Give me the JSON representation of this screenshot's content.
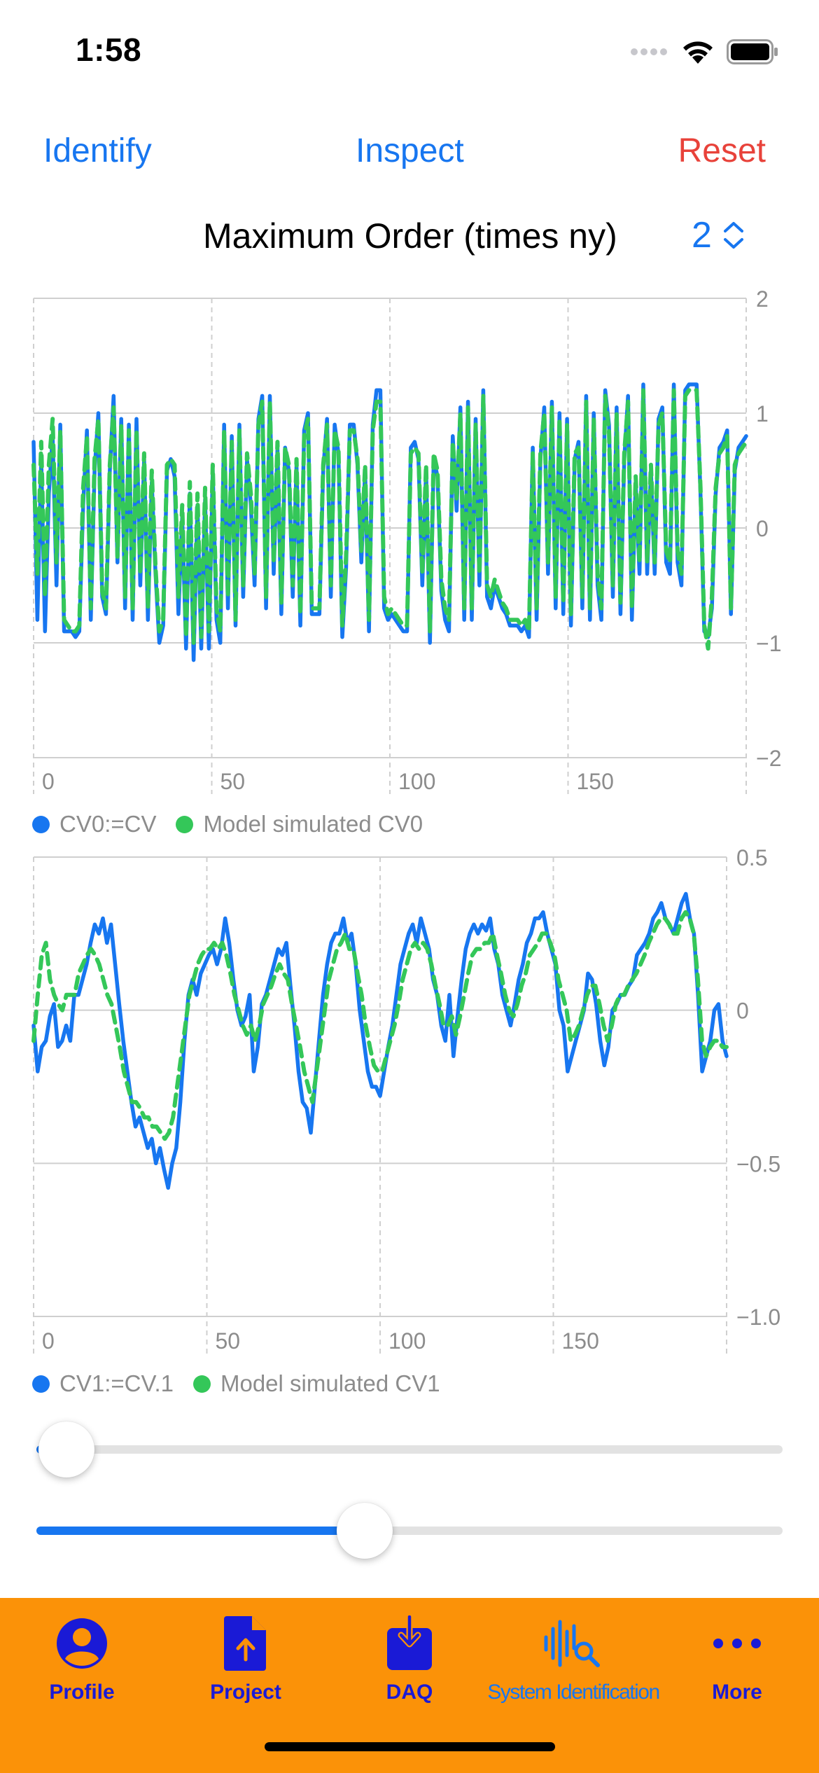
{
  "status_bar": {
    "time": "1:58"
  },
  "toolbar": {
    "identify_label": "Identify",
    "inspect_label": "Inspect",
    "reset_label": "Reset"
  },
  "order": {
    "label": "Maximum Order (times ny)",
    "value": "2"
  },
  "colors": {
    "accent": "#1776f0",
    "measured": "#1776f0",
    "model": "#34c759",
    "reset": "#e8423a",
    "tabbar": "#fb9208",
    "tab_label": "#1a1ad6"
  },
  "chart_data": [
    {
      "type": "line",
      "title": "",
      "xlabel": "",
      "ylabel": "",
      "xlim": [
        0,
        200
      ],
      "ylim": [
        -2,
        2
      ],
      "x_ticks": [
        0,
        50,
        100,
        150
      ],
      "x_tick_labels": [
        "0",
        "50",
        "100",
        "150"
      ],
      "y_ticks": [
        2,
        1,
        0,
        -1,
        -2
      ],
      "y_tick_labels": [
        "2",
        "1",
        "0",
        "−1",
        "−2"
      ],
      "grid": true,
      "legend": "bottom-left",
      "series": [
        {
          "name": "CV0:=CV",
          "color": "#1776f0",
          "style": "solid",
          "values": [
            0.75,
            -0.8,
            0.6,
            -0.9,
            0.3,
            0.8,
            -0.5,
            0.9,
            -0.9,
            -0.9,
            -0.9,
            -0.95,
            -0.9,
            0.2,
            0.85,
            -0.8,
            0.5,
            1.0,
            -0.6,
            -0.75,
            0.5,
            1.15,
            -0.3,
            0.95,
            -0.7,
            0.9,
            -0.8,
            0.95,
            -0.5,
            0.6,
            -0.8,
            0.4,
            -0.4,
            -1.0,
            -0.85,
            0.5,
            0.6,
            0.45,
            -0.75,
            0.1,
            -1.05,
            0.3,
            -1.15,
            0.2,
            -1.05,
            0.25,
            -1.05,
            0.5,
            -0.8,
            -1.0,
            0.9,
            -0.7,
            0.8,
            -0.85,
            0.9,
            -0.6,
            0.6,
            0.2,
            -0.5,
            0.95,
            1.15,
            -0.7,
            1.15,
            -0.4,
            0.7,
            -0.75,
            0.7,
            0.5,
            -0.6,
            0.55,
            -0.85,
            0.85,
            1.0,
            -0.75,
            -0.75,
            -0.75,
            0.5,
            0.95,
            -0.6,
            0.9,
            0.65,
            -0.95,
            -0.35,
            0.9,
            0.9,
            0.55,
            -0.3,
            0.5,
            -0.9,
            0.9,
            1.2,
            1.2,
            -0.7,
            -0.8,
            -0.75,
            -0.8,
            -0.85,
            -0.9,
            -0.9,
            0.7,
            0.75,
            0.6,
            -0.5,
            0.5,
            -1.0,
            0.6,
            0.45,
            -0.55,
            -0.8,
            -0.9,
            0.8,
            0.15,
            1.05,
            -0.8,
            1.1,
            -0.8,
            0.95,
            -0.5,
            1.2,
            -0.6,
            -0.7,
            -0.5,
            -0.6,
            -0.7,
            -0.75,
            -0.85,
            -0.85,
            -0.85,
            -0.9,
            -0.85,
            -0.95,
            0.7,
            -0.8,
            0.6,
            1.05,
            -0.4,
            1.1,
            -0.7,
            1.0,
            -0.75,
            0.95,
            -0.85,
            0.6,
            0.75,
            -0.7,
            1.15,
            -0.8,
            1.0,
            -0.5,
            -0.8,
            1.2,
            0.9,
            -0.6,
            1.05,
            -0.75,
            0.6,
            1.15,
            -0.8,
            0.4,
            -0.4,
            1.25,
            -0.4,
            0.5,
            -0.4,
            0.95,
            1.05,
            -0.3,
            -0.4,
            1.25,
            -0.3,
            -0.5,
            1.2,
            1.25,
            1.25,
            1.25,
            0.3,
            -0.9,
            -0.95,
            -0.7,
            0.3,
            0.7,
            0.75,
            0.85,
            -0.75,
            0.5,
            0.7,
            0.75,
            0.8
          ]
        },
        {
          "name": "Model simulated CV0",
          "color": "#34c759",
          "style": "dashed",
          "values": [
            0.55,
            -0.4,
            0.75,
            -0.6,
            0.55,
            0.95,
            -0.3,
            0.85,
            -0.8,
            -0.85,
            -0.9,
            -0.9,
            -0.85,
            0.35,
            0.8,
            -0.7,
            0.6,
            0.95,
            -0.55,
            -0.7,
            0.55,
            1.05,
            -0.25,
            0.9,
            -0.6,
            0.85,
            -0.7,
            0.85,
            -0.4,
            0.65,
            -0.7,
            0.5,
            -0.35,
            -0.9,
            -0.8,
            0.55,
            0.6,
            0.55,
            -0.6,
            0.2,
            -0.95,
            0.4,
            -1.0,
            0.3,
            -0.95,
            0.35,
            -0.9,
            0.55,
            -0.7,
            -0.9,
            0.85,
            -0.6,
            0.75,
            -0.8,
            0.85,
            -0.5,
            0.65,
            0.3,
            -0.4,
            0.9,
            1.1,
            -0.6,
            1.1,
            -0.3,
            0.75,
            -0.65,
            0.7,
            0.55,
            -0.5,
            0.6,
            -0.75,
            0.8,
            0.95,
            -0.7,
            -0.7,
            -0.7,
            0.55,
            0.9,
            -0.5,
            0.85,
            0.7,
            -0.85,
            -0.25,
            0.85,
            0.85,
            0.6,
            -0.2,
            0.55,
            -0.8,
            0.85,
            1.1,
            1.1,
            -0.6,
            -0.75,
            -0.7,
            -0.75,
            -0.8,
            -0.85,
            -0.85,
            0.65,
            0.7,
            0.65,
            -0.4,
            0.55,
            -0.9,
            0.65,
            0.5,
            -0.45,
            -0.7,
            -0.8,
            0.75,
            0.25,
            1.0,
            -0.7,
            1.05,
            -0.7,
            0.9,
            -0.4,
            1.15,
            -0.5,
            -0.6,
            -0.45,
            -0.55,
            -0.65,
            -0.7,
            -0.8,
            -0.8,
            -0.8,
            -0.85,
            -0.8,
            -0.9,
            0.65,
            -0.7,
            0.65,
            1.0,
            -0.3,
            1.05,
            -0.6,
            0.95,
            -0.65,
            0.9,
            -0.75,
            0.65,
            0.7,
            -0.6,
            1.1,
            -0.7,
            0.95,
            -0.4,
            -0.7,
            1.15,
            0.85,
            -0.5,
            1.0,
            -0.65,
            0.65,
            1.1,
            -0.7,
            0.45,
            -0.3,
            1.2,
            -0.3,
            0.55,
            -0.3,
            0.9,
            1.0,
            -0.2,
            -0.3,
            1.2,
            -0.2,
            -0.4,
            1.15,
            1.2,
            1.2,
            1.2,
            0.35,
            -0.85,
            -1.05,
            -0.6,
            0.35,
            0.65,
            0.7,
            0.8,
            -0.7,
            0.55,
            0.65,
            0.7,
            0.75
          ]
        }
      ]
    },
    {
      "type": "line",
      "title": "",
      "xlabel": "",
      "ylabel": "",
      "xlim": [
        0,
        200
      ],
      "ylim": [
        -1.0,
        0.5
      ],
      "x_ticks": [
        0,
        50,
        100,
        150
      ],
      "x_tick_labels": [
        "0",
        "50",
        "100",
        "150"
      ],
      "y_ticks": [
        0.5,
        0,
        -0.5,
        -1.0
      ],
      "y_tick_labels": [
        "0.5",
        "0",
        "−0.5",
        "−1.0"
      ],
      "grid": true,
      "legend": "bottom-left",
      "series": [
        {
          "name": "CV1:=CV.1",
          "color": "#1776f0",
          "style": "solid",
          "values": [
            -0.05,
            -0.2,
            -0.12,
            -0.1,
            -0.02,
            0.02,
            -0.12,
            -0.1,
            -0.05,
            -0.1,
            0.05,
            0.05,
            0.1,
            0.15,
            0.22,
            0.28,
            0.25,
            0.3,
            0.22,
            0.28,
            0.15,
            0.02,
            -0.1,
            -0.2,
            -0.3,
            -0.38,
            -0.35,
            -0.4,
            -0.45,
            -0.42,
            -0.5,
            -0.45,
            -0.52,
            -0.58,
            -0.5,
            -0.45,
            -0.3,
            -0.1,
            0.05,
            0.1,
            0.05,
            0.12,
            0.15,
            0.18,
            0.2,
            0.15,
            0.2,
            0.3,
            0.22,
            0.1,
            0.0,
            -0.05,
            -0.02,
            0.05,
            -0.2,
            -0.12,
            0.02,
            0.05,
            0.1,
            0.15,
            0.2,
            0.18,
            0.22,
            0.08,
            -0.05,
            -0.2,
            -0.3,
            -0.32,
            -0.4,
            -0.25,
            -0.1,
            0.05,
            0.15,
            0.22,
            0.25,
            0.25,
            0.3,
            0.22,
            0.25,
            0.15,
            0.0,
            -0.1,
            -0.2,
            -0.25,
            -0.25,
            -0.28,
            -0.2,
            -0.12,
            -0.05,
            0.05,
            0.15,
            0.2,
            0.25,
            0.28,
            0.22,
            0.3,
            0.25,
            0.2,
            0.1,
            0.05,
            -0.05,
            -0.1,
            0.05,
            -0.15,
            -0.02,
            0.1,
            0.2,
            0.25,
            0.28,
            0.25,
            0.28,
            0.26,
            0.3,
            0.2,
            0.15,
            0.05,
            0.0,
            -0.05,
            0.02,
            0.1,
            0.15,
            0.22,
            0.25,
            0.3,
            0.3,
            0.32,
            0.25,
            0.2,
            0.15,
            0.0,
            -0.05,
            -0.2,
            -0.15,
            -0.1,
            -0.05,
            0.0,
            0.12,
            0.1,
            0.02,
            -0.1,
            -0.18,
            -0.12,
            0.0,
            0.02,
            0.05,
            0.05,
            0.08,
            0.1,
            0.18,
            0.2,
            0.22,
            0.25,
            0.3,
            0.32,
            0.35,
            0.3,
            0.28,
            0.25,
            0.3,
            0.35,
            0.38,
            0.3,
            0.25,
            0.05,
            -0.2,
            -0.15,
            -0.1,
            0.0,
            0.02,
            -0.1,
            -0.15
          ]
        },
        {
          "name": "Model simulated CV1",
          "color": "#34c759",
          "style": "dashed",
          "values": [
            -0.1,
            0.05,
            0.18,
            0.22,
            0.1,
            0.05,
            0.02,
            0.0,
            0.05,
            0.05,
            0.05,
            0.12,
            0.15,
            0.18,
            0.2,
            0.18,
            0.15,
            0.1,
            0.05,
            0.02,
            -0.05,
            -0.12,
            -0.2,
            -0.25,
            -0.3,
            -0.3,
            -0.32,
            -0.35,
            -0.35,
            -0.38,
            -0.38,
            -0.4,
            -0.42,
            -0.4,
            -0.35,
            -0.25,
            -0.15,
            -0.05,
            0.05,
            0.1,
            0.15,
            0.18,
            0.2,
            0.2,
            0.22,
            0.2,
            0.22,
            0.18,
            0.12,
            0.05,
            0.0,
            -0.05,
            -0.08,
            -0.05,
            -0.1,
            -0.05,
            0.02,
            0.05,
            0.08,
            0.12,
            0.15,
            0.12,
            0.1,
            0.02,
            -0.05,
            -0.12,
            -0.2,
            -0.25,
            -0.3,
            -0.2,
            -0.1,
            0.0,
            0.1,
            0.15,
            0.2,
            0.22,
            0.25,
            0.2,
            0.2,
            0.12,
            0.05,
            -0.05,
            -0.12,
            -0.18,
            -0.2,
            -0.2,
            -0.15,
            -0.1,
            -0.05,
            0.02,
            0.1,
            0.15,
            0.2,
            0.22,
            0.2,
            0.22,
            0.2,
            0.15,
            0.08,
            0.02,
            -0.05,
            -0.05,
            -0.02,
            -0.08,
            -0.02,
            0.05,
            0.12,
            0.18,
            0.2,
            0.2,
            0.22,
            0.22,
            0.25,
            0.18,
            0.12,
            0.05,
            0.0,
            -0.02,
            0.02,
            0.08,
            0.12,
            0.18,
            0.2,
            0.22,
            0.25,
            0.25,
            0.22,
            0.18,
            0.1,
            0.05,
            0.0,
            -0.1,
            -0.08,
            -0.05,
            0.0,
            0.05,
            0.08,
            0.08,
            0.02,
            -0.05,
            -0.1,
            -0.05,
            0.02,
            0.05,
            0.05,
            0.08,
            0.1,
            0.12,
            0.15,
            0.18,
            0.22,
            0.25,
            0.28,
            0.3,
            0.3,
            0.28,
            0.25,
            0.25,
            0.3,
            0.32,
            0.3,
            0.25,
            0.1,
            -0.1,
            -0.15,
            -0.12,
            -0.1,
            -0.1,
            -0.12,
            -0.12
          ]
        }
      ]
    }
  ],
  "sliders": [
    {
      "name": "slider-top",
      "value_fraction": 0.04
    },
    {
      "name": "slider-bottom",
      "value_fraction": 0.44
    }
  ],
  "tabs": [
    {
      "label": "Profile",
      "icon": "person-circle-icon",
      "selected": false
    },
    {
      "label": "Project",
      "icon": "document-upload-icon",
      "selected": false
    },
    {
      "label": "DAQ",
      "icon": "tray-download-icon",
      "selected": false
    },
    {
      "label": "System Identification",
      "icon": "waveform-search-icon",
      "selected": true
    },
    {
      "label": "More",
      "icon": "ellipsis-icon",
      "selected": false
    }
  ]
}
